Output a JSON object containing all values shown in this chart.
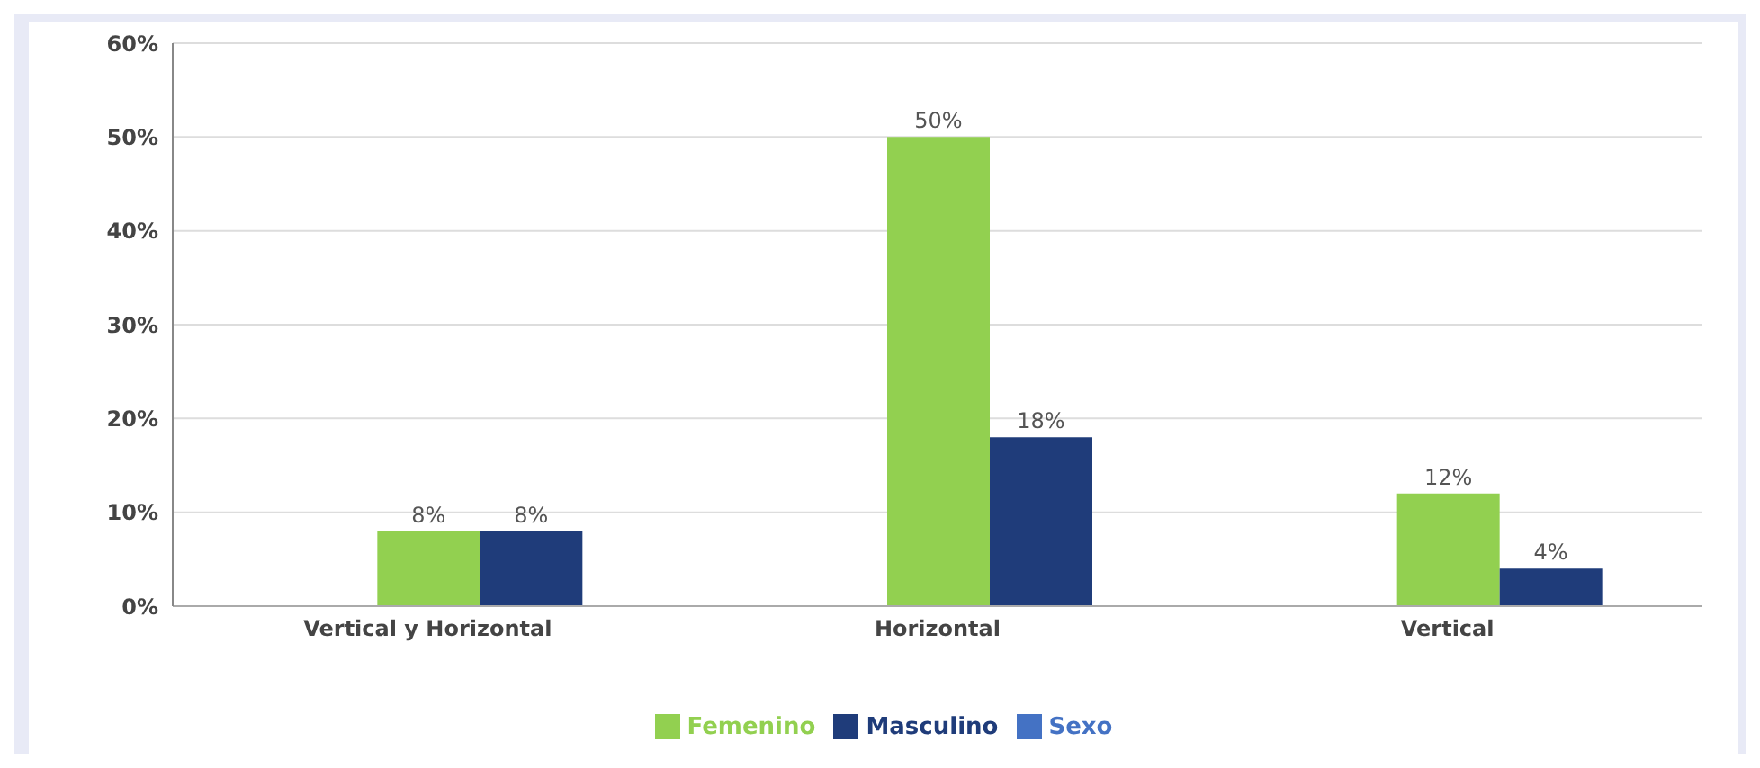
{
  "chart_data": {
    "type": "bar",
    "categories": [
      "Vertical y Horizontal",
      "Horizontal",
      "Vertical"
    ],
    "series": [
      {
        "name": "Sexo",
        "color": "#4472c4",
        "values": [
          null,
          null,
          null
        ]
      },
      {
        "name": "Femenino",
        "color": "#92d050",
        "values": [
          8,
          50,
          12
        ],
        "value_labels": [
          "8%",
          "50%",
          "12%"
        ]
      },
      {
        "name": "Masculino",
        "color": "#1f3c7a",
        "values": [
          8,
          18,
          4
        ],
        "value_labels": [
          "8%",
          "18%",
          "4%"
        ]
      }
    ],
    "ylim": [
      0,
      60
    ],
    "yticks": [
      {
        "value": 0,
        "label": "0%"
      },
      {
        "value": 10,
        "label": "10%"
      },
      {
        "value": 20,
        "label": "20%"
      },
      {
        "value": 30,
        "label": "30%"
      },
      {
        "value": 40,
        "label": "40%"
      },
      {
        "value": 50,
        "label": "50%"
      },
      {
        "value": 60,
        "label": "60%"
      }
    ],
    "grid": "y",
    "legend": "bottom"
  }
}
